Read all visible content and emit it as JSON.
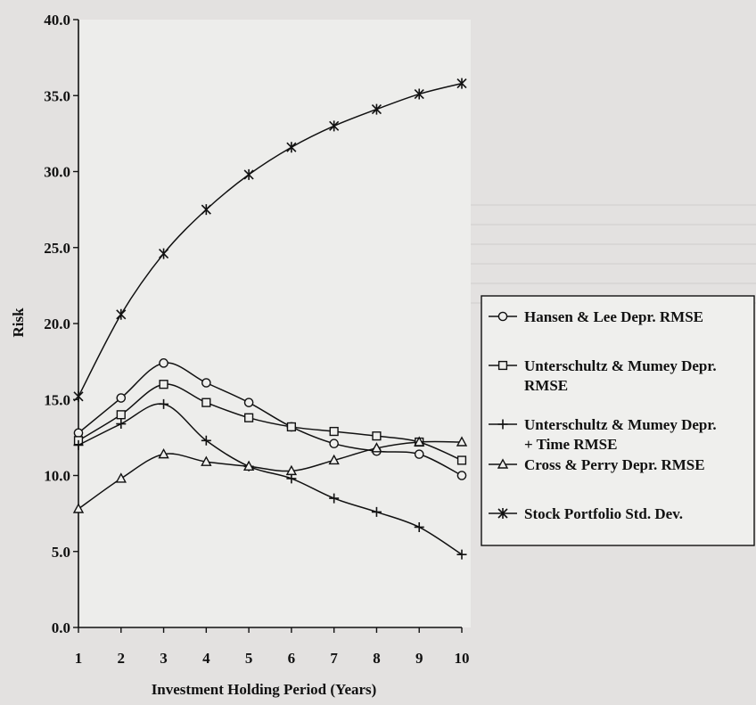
{
  "chart_data": {
    "type": "line",
    "title": "",
    "xlabel": "Investment Holding Period (Years)",
    "ylabel": "Risk",
    "xlim": [
      1,
      10
    ],
    "ylim": [
      0,
      40
    ],
    "x": [
      1,
      2,
      3,
      4,
      5,
      6,
      7,
      8,
      9,
      10
    ],
    "x_ticks": [
      "1",
      "2",
      "3",
      "4",
      "5",
      "6",
      "7",
      "8",
      "9",
      "10"
    ],
    "y_ticks": [
      "0.0",
      "5.0",
      "10.0",
      "15.0",
      "20.0",
      "25.0",
      "30.0",
      "35.0",
      "40.0"
    ],
    "grid": false,
    "legend_position": "right",
    "series": [
      {
        "name": "Hansen & Lee Depr. RMSE",
        "marker": "circle",
        "values": [
          12.8,
          15.1,
          17.4,
          16.1,
          14.8,
          13.2,
          12.1,
          11.6,
          11.4,
          10.0
        ]
      },
      {
        "name": "Unterschultz & Mumey Depr. RMSE",
        "marker": "square",
        "values": [
          12.3,
          14.0,
          16.0,
          14.8,
          13.8,
          13.2,
          12.9,
          12.6,
          12.2,
          11.0
        ]
      },
      {
        "name": "Unterschultz & Mumey Depr. + Time RMSE",
        "marker": "plus",
        "values": [
          12.0,
          13.4,
          14.7,
          12.3,
          10.6,
          9.8,
          8.5,
          7.6,
          6.6,
          4.8
        ]
      },
      {
        "name": "Cross & Perry Depr. RMSE",
        "marker": "triangle",
        "values": [
          7.8,
          9.8,
          11.4,
          10.9,
          10.6,
          10.3,
          11.0,
          11.8,
          12.2,
          12.2
        ]
      },
      {
        "name": "Stock Portfolio Std. Dev.",
        "marker": "asterisk",
        "values": [
          15.2,
          20.6,
          24.6,
          27.5,
          29.8,
          31.6,
          33.0,
          34.1,
          35.1,
          35.8
        ]
      }
    ]
  }
}
